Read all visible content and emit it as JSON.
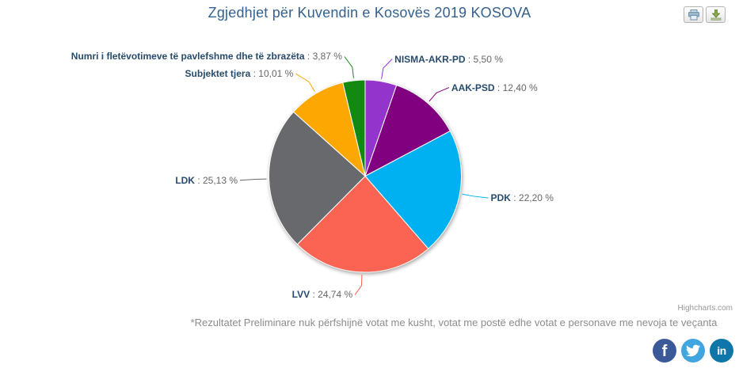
{
  "header": {
    "title": "Zgjedhjet për Kuvendin e Kosovës 2019 KOSOVA",
    "title_color": "#35618e"
  },
  "toolbar": {
    "icons": [
      {
        "name": "print-icon",
        "shape": "printer"
      },
      {
        "name": "download-icon",
        "shape": "down-arrow-to-tray"
      }
    ]
  },
  "chart_data": {
    "type": "pie",
    "title": "Zgjedhjet për Kuvendin e Kosovës 2019 KOSOVA",
    "legend": "none",
    "start_angle": "top, clockwise",
    "label_format": "{name} : {value} %",
    "label_name_color": "#274b6d",
    "label_value_color": "#666666",
    "slice_border_color": "#ffffff",
    "points": [
      {
        "label": "NISMA-AKR-PD",
        "value": 5.5,
        "display": "5,50 %",
        "color": "#9335cd"
      },
      {
        "label": "AAK-PSD",
        "value": 12.4,
        "display": "12,40 %",
        "color": "#800080"
      },
      {
        "label": "PDK",
        "value": 22.2,
        "display": "22,20 %",
        "color": "#00b1f2"
      },
      {
        "label": "LVV",
        "value": 24.74,
        "display": "24,74 %",
        "color": "#fb6352"
      },
      {
        "label": "LDK",
        "value": 25.13,
        "display": "25,13 %",
        "color": "#67696c"
      },
      {
        "label": "Subjektet tjera",
        "value": 10.01,
        "display": "10,01 %",
        "color": "#fda802"
      },
      {
        "label": "Numri i fletëvotimeve të pavlefshme dhe të zbrazëta",
        "value": 3.87,
        "display": "3,87 %",
        "color": "#128a12"
      }
    ]
  },
  "footer": {
    "note": "*Rezultatet Preliminare nuk përfshijnë votat me kusht, votat me postë edhe votat e personave me nevoja te veçanta"
  },
  "watermark": {
    "label": "Highcharts.com"
  },
  "social": {
    "items": [
      {
        "name": "facebook",
        "glyph": "f",
        "color": "#3b5998"
      },
      {
        "name": "twitter",
        "glyph": "bird",
        "color": "#41a6e0"
      },
      {
        "name": "linkedin",
        "glyph": "in",
        "color": "#0e76a8"
      }
    ]
  }
}
